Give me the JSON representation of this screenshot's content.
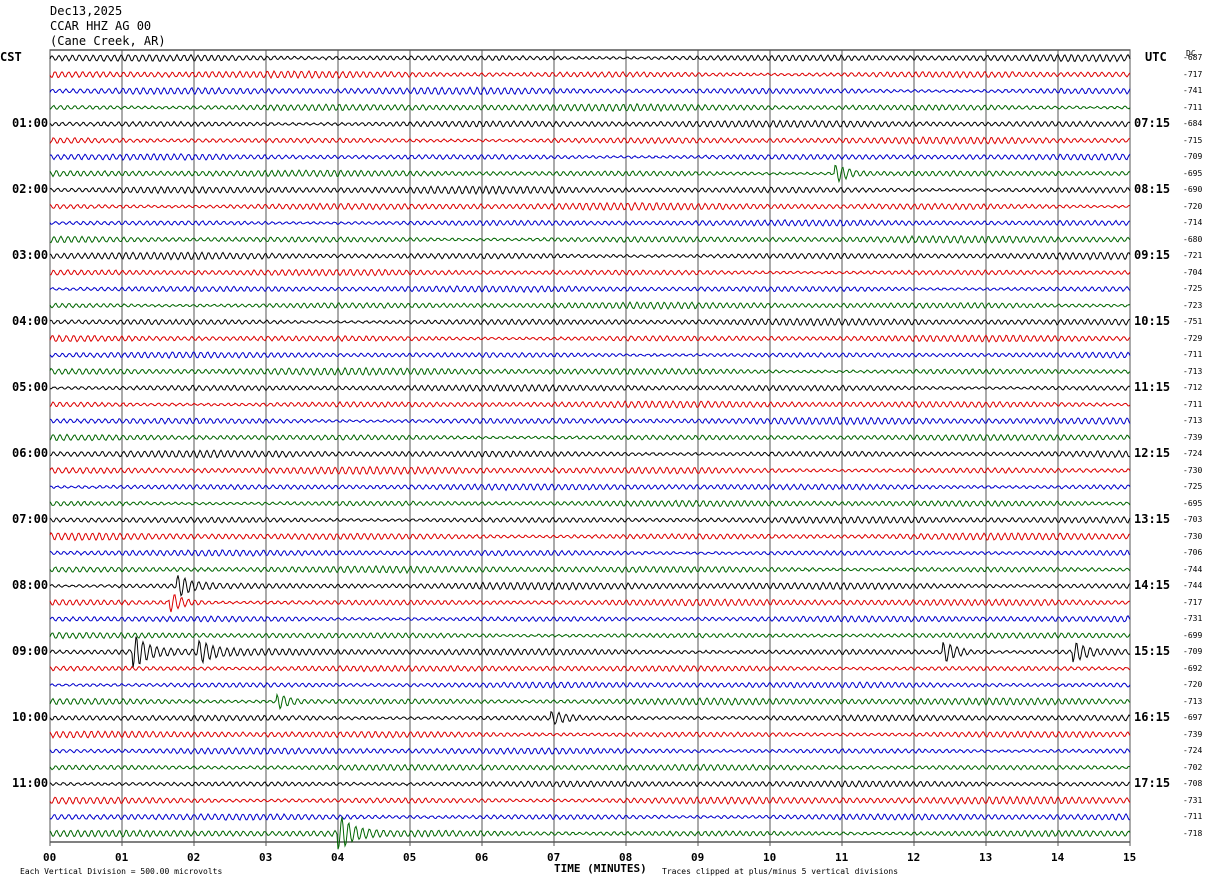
{
  "header": {
    "date": "Dec13,2025",
    "station": "CCAR HHZ AG 00",
    "location": "(Cane Creek, AR)"
  },
  "labels": {
    "left_timezone": "CST",
    "right_timezone": "UTC",
    "dc_header": "DC",
    "x_axis_title": "TIME (MINUTES)",
    "scale_note": "Each Vertical Division =  500.00 microvolts",
    "clip_note": "Traces clipped at plus/minus 5 vertical divisions"
  },
  "chart_data": {
    "type": "line",
    "title": "CCAR HHZ AG 00",
    "xlabel": "TIME (MINUTES)",
    "x_ticks": [
      "00",
      "01",
      "02",
      "03",
      "04",
      "05",
      "06",
      "07",
      "08",
      "09",
      "10",
      "11",
      "12",
      "13",
      "14",
      "15"
    ],
    "xlim": [
      0,
      15
    ],
    "rows": 48,
    "row_minutes": 15,
    "trace_colors": [
      "#000000",
      "#dd0000",
      "#0000cc",
      "#006600"
    ],
    "left_hour_labels": [
      "01:00",
      "02:00",
      "03:00",
      "04:00",
      "05:00",
      "06:00",
      "07:00",
      "08:00",
      "09:00",
      "10:00",
      "11:00"
    ],
    "right_hour_labels": [
      "07:15",
      "08:15",
      "09:15",
      "10:15",
      "11:15",
      "12:15",
      "13:15",
      "14:15",
      "15:15",
      "16:15",
      "17:15"
    ],
    "dc_offsets": [
      "-687",
      "-717",
      "-741",
      "-711",
      "-684",
      "-715",
      "-709",
      "-695",
      "-690",
      "-720",
      "-714",
      "-680",
      "-721",
      "-704",
      "-725",
      "-723",
      "-751",
      "-729",
      "-711",
      "-713",
      "-712",
      "-711",
      "-713",
      "-739",
      "-724",
      "-730",
      "-725",
      "-695",
      "-703",
      "-730",
      "-706",
      "-744",
      "-744",
      "-717",
      "-731",
      "-699",
      "-709",
      "-692",
      "-720",
      "-713",
      "-697",
      "-739",
      "-724",
      "-702",
      "-708",
      "-731",
      "-711",
      "-718"
    ],
    "events": [
      {
        "row": 7,
        "minute": 10.95,
        "amplitude": "moderate"
      },
      {
        "row": 32,
        "minute": 1.8,
        "amplitude": "moderate"
      },
      {
        "row": 33,
        "minute": 1.7,
        "amplitude": "moderate"
      },
      {
        "row": 36,
        "minute": 1.2,
        "amplitude": "large"
      },
      {
        "row": 36,
        "minute": 2.1,
        "amplitude": "moderate"
      },
      {
        "row": 36,
        "minute": 12.45,
        "amplitude": "moderate"
      },
      {
        "row": 36,
        "minute": 14.25,
        "amplitude": "moderate"
      },
      {
        "row": 39,
        "minute": 3.2,
        "amplitude": "small"
      },
      {
        "row": 40,
        "minute": 7.0,
        "amplitude": "small"
      },
      {
        "row": 47,
        "minute": 4.05,
        "amplitude": "large"
      }
    ]
  }
}
